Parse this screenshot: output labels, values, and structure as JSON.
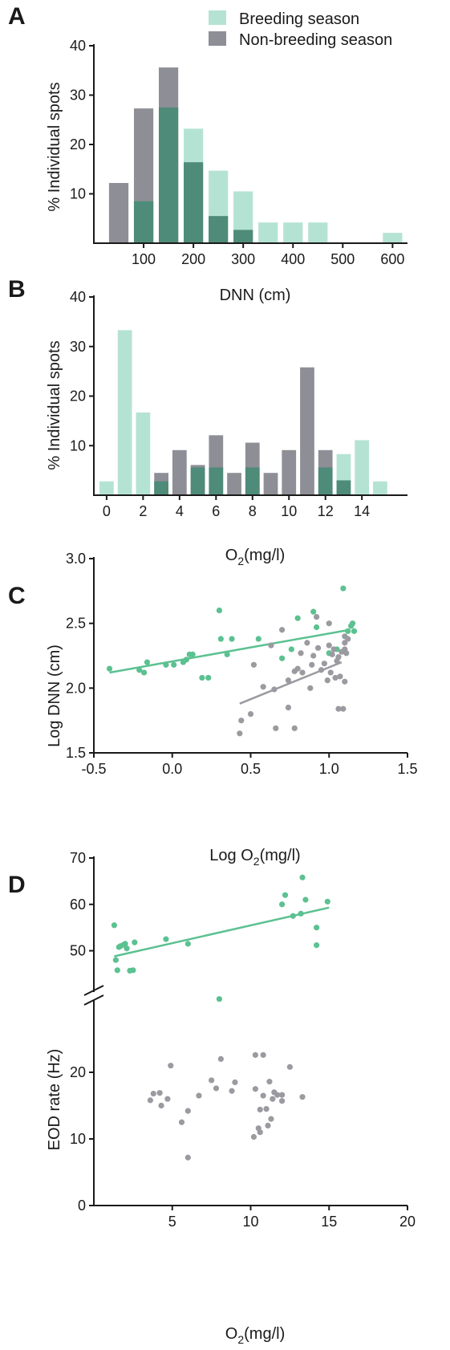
{
  "colors": {
    "breeding_bar": "#b5e3d3",
    "overlap_bar": "#4e8b78",
    "nonbreeding_bar": "#8e8e96",
    "breeding_point": "#5cc191",
    "nonbreeding_point": "#9a9aa0"
  },
  "legend": {
    "breeding": "Breeding season",
    "nonbreeding": "Non-breeding season"
  },
  "chart_data": [
    {
      "panel": "A",
      "type": "bar",
      "xlabel": "DNN (cm)",
      "ylabel": "% Individual spots",
      "x_ticks": [
        "100",
        "200",
        "300",
        "400",
        "500",
        "600"
      ],
      "y_ticks": [
        "10",
        "20",
        "30",
        "40"
      ],
      "xlim": [
        0,
        630
      ],
      "ylim": [
        0,
        40
      ],
      "legend_position": "top-right",
      "series": [
        {
          "name": "Breeding season",
          "x": [
            100,
            150,
            200,
            250,
            300,
            350,
            400,
            450,
            600
          ],
          "values": [
            8.5,
            27.5,
            23.2,
            14.7,
            10.5,
            4.2,
            4.2,
            4.2,
            2.1
          ]
        },
        {
          "name": "Non-breeding season",
          "x": [
            50,
            100,
            150,
            200,
            250,
            300
          ],
          "values": [
            12.2,
            27.3,
            35.6,
            16.4,
            5.5,
            2.7
          ]
        }
      ]
    },
    {
      "panel": "B",
      "type": "bar",
      "xlabel_main": "O",
      "xlabel_sub": "2",
      "xlabel_tail": "(mg/l)",
      "ylabel": "% Individual spots",
      "x_ticks": [
        "0",
        "2",
        "4",
        "6",
        "8",
        "10",
        "12",
        "14"
      ],
      "y_ticks": [
        "10",
        "20",
        "30",
        "40"
      ],
      "xlim": [
        -0.7,
        16.5
      ],
      "ylim": [
        0,
        40
      ],
      "series": [
        {
          "name": "Breeding season",
          "x": [
            0,
            1,
            2,
            3,
            5,
            6,
            8,
            12,
            13,
            14,
            15
          ],
          "values": [
            2.8,
            33.3,
            16.7,
            2.8,
            5.6,
            5.6,
            5.6,
            5.6,
            8.3,
            11.1,
            2.8
          ]
        },
        {
          "name": "Non-breeding season",
          "x": [
            3,
            4,
            5,
            6,
            7,
            8,
            9,
            10,
            11,
            12,
            13
          ],
          "values": [
            4.5,
            9.1,
            6.1,
            12.1,
            4.5,
            10.6,
            4.5,
            9.1,
            25.8,
            9.1,
            3.0
          ]
        }
      ]
    },
    {
      "panel": "C",
      "type": "scatter",
      "xlabel_main": "Log O",
      "xlabel_sub": "2",
      "xlabel_tail": "(mg/l)",
      "ylabel": "Log DNN (cm)",
      "x_ticks": [
        "-0.5",
        "0.0",
        "0.5",
        "1.0",
        "1.5"
      ],
      "y_ticks": [
        "1.5",
        "2.0",
        "2.5",
        "3.0"
      ],
      "xlim": [
        -0.5,
        1.5
      ],
      "ylim": [
        1.5,
        3.0
      ],
      "series": [
        {
          "name": "Breeding season",
          "points": [
            [
              -0.4,
              2.15
            ],
            [
              -0.21,
              2.14
            ],
            [
              -0.18,
              2.12
            ],
            [
              -0.16,
              2.2
            ],
            [
              -0.04,
              2.18
            ],
            [
              0.01,
              2.18
            ],
            [
              0.07,
              2.2
            ],
            [
              0.09,
              2.22
            ],
            [
              0.11,
              2.26
            ],
            [
              0.13,
              2.26
            ],
            [
              0.19,
              2.08
            ],
            [
              0.23,
              2.08
            ],
            [
              0.3,
              2.6
            ],
            [
              0.31,
              2.38
            ],
            [
              0.35,
              2.26
            ],
            [
              0.38,
              2.38
            ],
            [
              0.55,
              2.38
            ],
            [
              0.7,
              2.23
            ],
            [
              0.76,
              2.3
            ],
            [
              0.8,
              2.54
            ],
            [
              0.9,
              2.59
            ],
            [
              0.92,
              2.47
            ],
            [
              1.0,
              2.27
            ],
            [
              1.05,
              2.3
            ],
            [
              1.09,
              2.77
            ],
            [
              1.12,
              2.44
            ],
            [
              1.14,
              2.48
            ],
            [
              1.15,
              2.5
            ],
            [
              1.16,
              2.44
            ]
          ],
          "fit": [
            [
              -0.4,
              2.12
            ],
            [
              1.13,
              2.45
            ]
          ]
        },
        {
          "name": "Non-breeding season",
          "points": [
            [
              0.43,
              1.65
            ],
            [
              0.44,
              1.75
            ],
            [
              0.5,
              1.8
            ],
            [
              0.52,
              2.18
            ],
            [
              0.58,
              2.01
            ],
            [
              0.63,
              2.33
            ],
            [
              0.65,
              1.99
            ],
            [
              0.66,
              1.69
            ],
            [
              0.7,
              2.45
            ],
            [
              0.74,
              1.85
            ],
            [
              0.74,
              2.06
            ],
            [
              0.78,
              1.69
            ],
            [
              0.78,
              2.13
            ],
            [
              0.8,
              2.15
            ],
            [
              0.82,
              2.27
            ],
            [
              0.83,
              2.12
            ],
            [
              0.86,
              2.35
            ],
            [
              0.88,
              2.0
            ],
            [
              0.89,
              2.18
            ],
            [
              0.9,
              2.25
            ],
            [
              0.93,
              2.31
            ],
            [
              0.95,
              2.14
            ],
            [
              0.97,
              2.19
            ],
            [
              0.99,
              2.06
            ],
            [
              1.0,
              2.33
            ],
            [
              1.01,
              2.12
            ],
            [
              1.02,
              2.26
            ],
            [
              1.03,
              2.3
            ],
            [
              1.04,
              2.08
            ],
            [
              1.05,
              2.21
            ],
            [
              1.06,
              1.84
            ],
            [
              1.06,
              2.24
            ],
            [
              1.07,
              2.09
            ],
            [
              1.08,
              2.28
            ],
            [
              1.09,
              1.84
            ],
            [
              1.1,
              2.05
            ],
            [
              1.1,
              2.3
            ],
            [
              1.11,
              2.27
            ],
            [
              1.1,
              2.35
            ],
            [
              1.12,
              2.38
            ],
            [
              1.1,
              2.4
            ],
            [
              1.0,
              2.5
            ],
            [
              0.92,
              2.55
            ]
          ],
          "fit": [
            [
              0.43,
              1.88
            ],
            [
              1.08,
              2.2
            ]
          ]
        }
      ]
    },
    {
      "panel": "D",
      "type": "scatter",
      "xlabel_main": "O",
      "xlabel_sub": "2",
      "xlabel_tail": "(mg/l)",
      "ylabel": "EOD rate (Hz)",
      "x_ticks": [
        "5",
        "10",
        "15",
        "20"
      ],
      "y_ticks_lower": [
        "0",
        "10",
        "20"
      ],
      "y_ticks_upper": [
        "50",
        "60",
        "70"
      ],
      "xlim": [
        0,
        20
      ],
      "ylim_lower": [
        0,
        30
      ],
      "ylim_upper": [
        43,
        70
      ],
      "axis_break": true,
      "series": [
        {
          "name": "Breeding season",
          "points": [
            [
              1.3,
              55.5
            ],
            [
              1.4,
              48.0
            ],
            [
              1.5,
              45.8
            ],
            [
              1.6,
              50.8
            ],
            [
              1.7,
              51.0
            ],
            [
              1.9,
              51.3
            ],
            [
              2.0,
              51.5
            ],
            [
              2.1,
              50.5
            ],
            [
              2.3,
              45.7
            ],
            [
              2.5,
              45.8
            ],
            [
              2.6,
              51.8
            ],
            [
              4.6,
              52.5
            ],
            [
              6.0,
              51.5
            ],
            [
              12.0,
              60.0
            ],
            [
              12.2,
              62.0
            ],
            [
              12.7,
              57.5
            ],
            [
              13.2,
              58.0
            ],
            [
              13.3,
              65.8
            ],
            [
              13.5,
              61.0
            ],
            [
              14.2,
              55.0
            ],
            [
              14.2,
              51.2
            ],
            [
              14.9,
              60.6
            ]
          ],
          "fit": [
            [
              1.3,
              48.8
            ],
            [
              15.0,
              59.3
            ]
          ],
          "extra_points_lower_scale": [
            [
              8.0,
              31.0
            ]
          ]
        },
        {
          "name": "Non-breeding season",
          "points": [
            [
              3.6,
              15.8
            ],
            [
              3.8,
              16.8
            ],
            [
              4.2,
              16.9
            ],
            [
              4.3,
              15.0
            ],
            [
              4.7,
              16.0
            ],
            [
              4.9,
              21.0
            ],
            [
              5.6,
              12.5
            ],
            [
              6.0,
              14.2
            ],
            [
              6.0,
              7.2
            ],
            [
              6.7,
              16.5
            ],
            [
              7.5,
              18.8
            ],
            [
              7.8,
              17.6
            ],
            [
              8.1,
              22.0
            ],
            [
              8.8,
              17.2
            ],
            [
              9.0,
              18.5
            ],
            [
              10.2,
              10.3
            ],
            [
              10.3,
              17.5
            ],
            [
              10.3,
              22.6
            ],
            [
              10.5,
              11.6
            ],
            [
              10.6,
              14.4
            ],
            [
              10.6,
              11.0
            ],
            [
              10.8,
              16.5
            ],
            [
              10.8,
              22.6
            ],
            [
              11.0,
              14.5
            ],
            [
              11.1,
              12.0
            ],
            [
              11.2,
              18.6
            ],
            [
              11.3,
              13.0
            ],
            [
              11.5,
              17.0
            ],
            [
              11.7,
              16.6
            ],
            [
              12.0,
              15.7
            ],
            [
              12.0,
              16.6
            ],
            [
              12.5,
              20.8
            ],
            [
              13.3,
              16.3
            ],
            [
              11.4,
              16.0
            ]
          ]
        }
      ]
    }
  ]
}
